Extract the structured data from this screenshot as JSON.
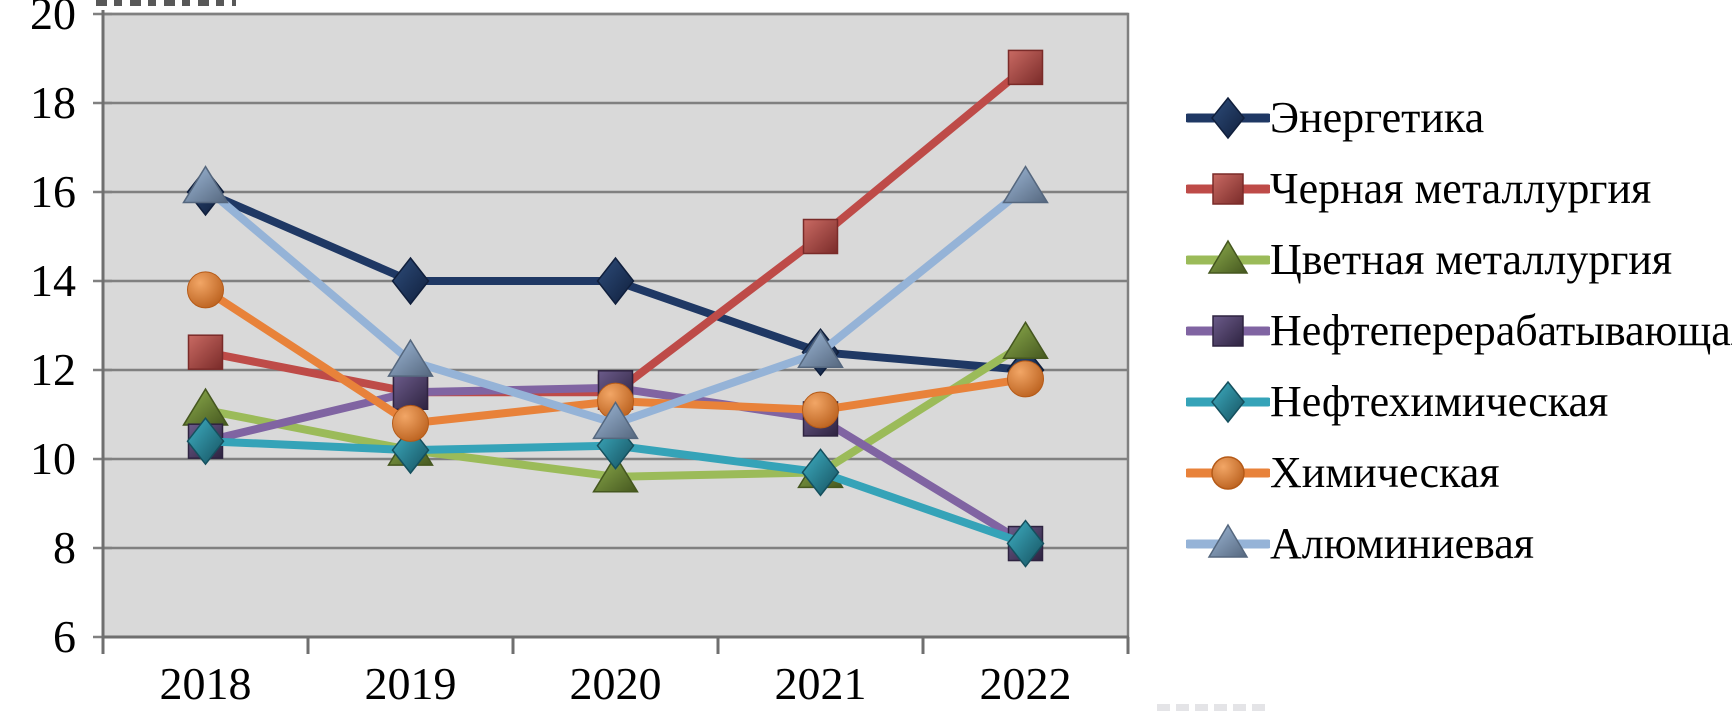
{
  "chart_data": {
    "type": "line",
    "title": "",
    "xlabel": "",
    "ylabel": "",
    "categories": [
      "2018",
      "2019",
      "2020",
      "2021",
      "2022"
    ],
    "y_ticks": [
      "6",
      "8",
      "10",
      "12",
      "14",
      "16",
      "18",
      "20"
    ],
    "ylim": [
      6,
      20
    ],
    "grid": true,
    "legend_position": "right",
    "plot_bg_color": "#D9D9D9",
    "grid_color": "#808080",
    "series": [
      {
        "key": "energetika",
        "name": "Энергетика",
        "marker": "diamond",
        "color": "#1F3864",
        "marker_light": "#2E4D7B",
        "marker_dark": "#101F3C",
        "values": [
          16,
          14,
          14,
          12.4,
          12
        ]
      },
      {
        "key": "chernaya-metallurgiya",
        "name": "Черная металлургия",
        "marker": "square",
        "color": "#BE4B48",
        "marker_light": "#C96A63",
        "marker_dark": "#7A2B29",
        "values": [
          12.4,
          11.5,
          11.5,
          15,
          18.8
        ]
      },
      {
        "key": "tsvetnaya-metallurgiya",
        "name": "Цветная металлургия",
        "marker": "triangle",
        "color": "#9BBB59",
        "marker_light": "#8FAF4E",
        "marker_dark": "#45571F",
        "values": [
          11.1,
          10.2,
          9.6,
          9.7,
          12.6
        ]
      },
      {
        "key": "neftepererabatyvayushchaya",
        "name": "Нефтеперерабатывающая",
        "marker": "square",
        "color": "#8064A2",
        "marker_light": "#6B5B8A",
        "marker_dark": "#2E2340",
        "values": [
          10.4,
          11.5,
          11.6,
          10.9,
          8.1
        ]
      },
      {
        "key": "neftekhimicheskaya",
        "name": "Нефтехимическая",
        "marker": "diamond",
        "color": "#35A3B8",
        "marker_light": "#3FB0C4",
        "marker_dark": "#15505E",
        "values": [
          10.4,
          10.2,
          10.3,
          9.7,
          8.1
        ]
      },
      {
        "key": "khimicheskaya",
        "name": "Химическая",
        "marker": "circle",
        "color": "#E8823A",
        "marker_light": "#F2A666",
        "marker_dark": "#B55A17",
        "values": [
          13.8,
          10.8,
          11.3,
          11.1,
          11.8
        ]
      },
      {
        "key": "alyuminievaya",
        "name": "Алюминиевая",
        "marker": "triangle",
        "color": "#95B3D7",
        "marker_light": "#9FB9D8",
        "marker_dark": "#55677E",
        "values": [
          16.1,
          12.2,
          10.8,
          12.4,
          16.1
        ]
      }
    ]
  }
}
